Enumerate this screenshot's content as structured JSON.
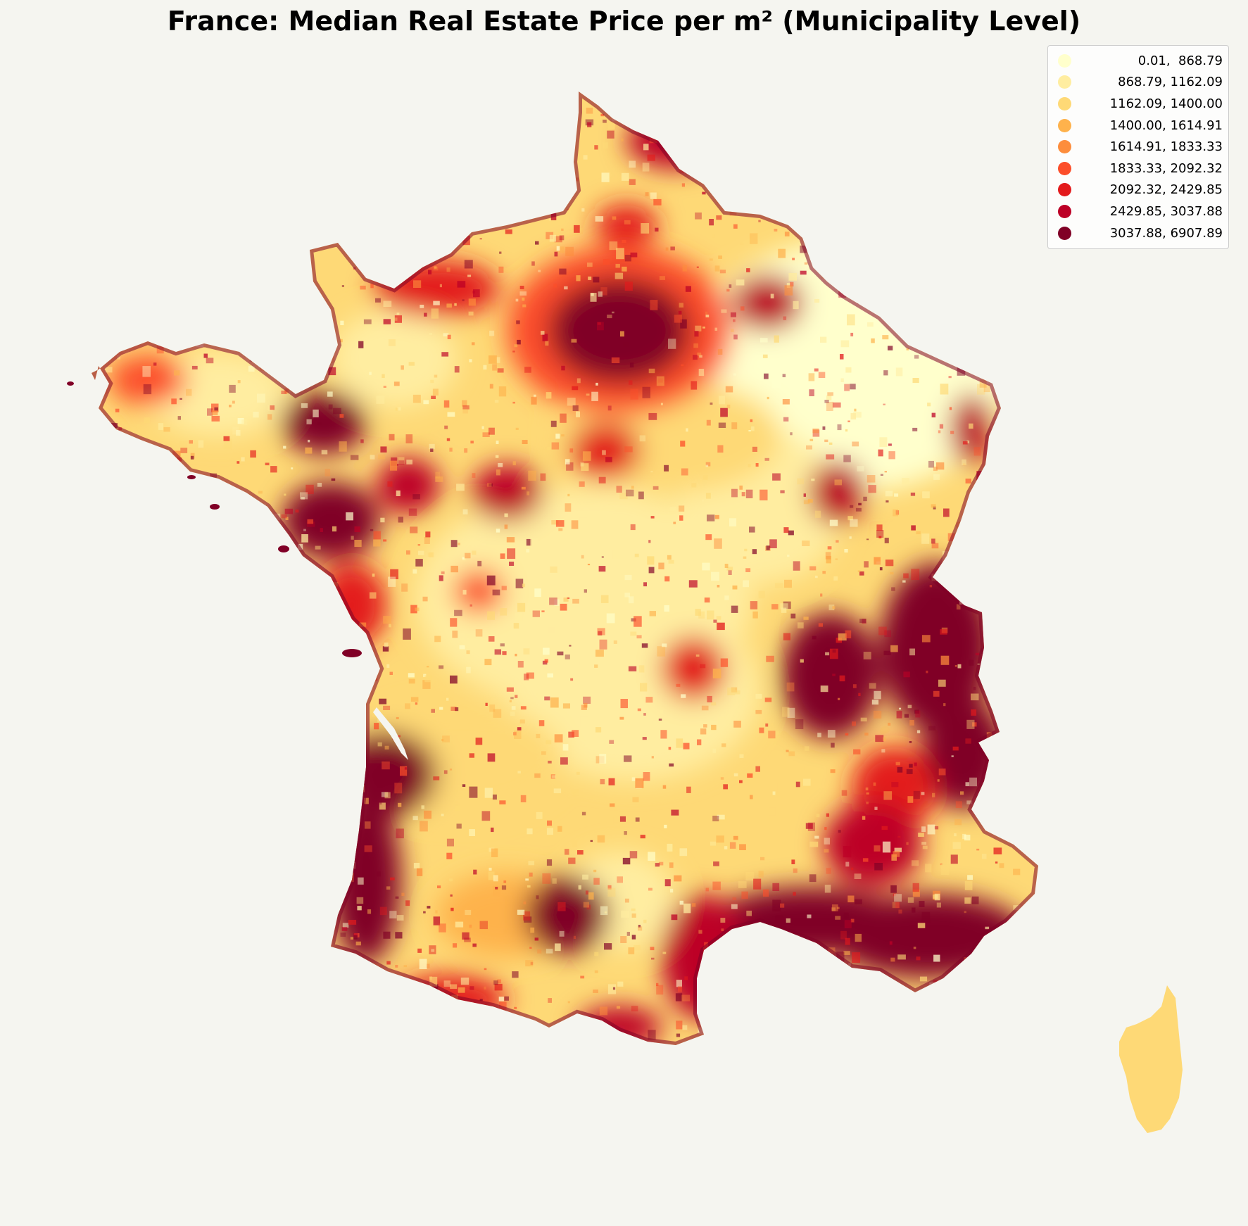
{
  "title": "France: Median Real Estate Price per m² (Municipality Level)",
  "legend": {
    "items": [
      {
        "label": "0.01,  868.79",
        "color": "#ffffcc"
      },
      {
        "label": "868.79, 1162.09",
        "color": "#ffeda0"
      },
      {
        "label": "1162.09, 1400.00",
        "color": "#fed976"
      },
      {
        "label": "1400.00, 1614.91",
        "color": "#feb24c"
      },
      {
        "label": "1614.91, 1833.33",
        "color": "#fd8d3c"
      },
      {
        "label": "1833.33, 2092.32",
        "color": "#fc4e2a"
      },
      {
        "label": "2092.32, 2429.85",
        "color": "#e31a1c"
      },
      {
        "label": "2429.85, 3037.88",
        "color": "#bd0026"
      },
      {
        "label": "3037.88, 6907.89",
        "color": "#800026"
      }
    ],
    "placement": "top-right"
  },
  "map": {
    "colormap": "YlOrRd",
    "classes": 9,
    "regions": [
      "Metropolitan France",
      "Corsica"
    ]
  }
}
